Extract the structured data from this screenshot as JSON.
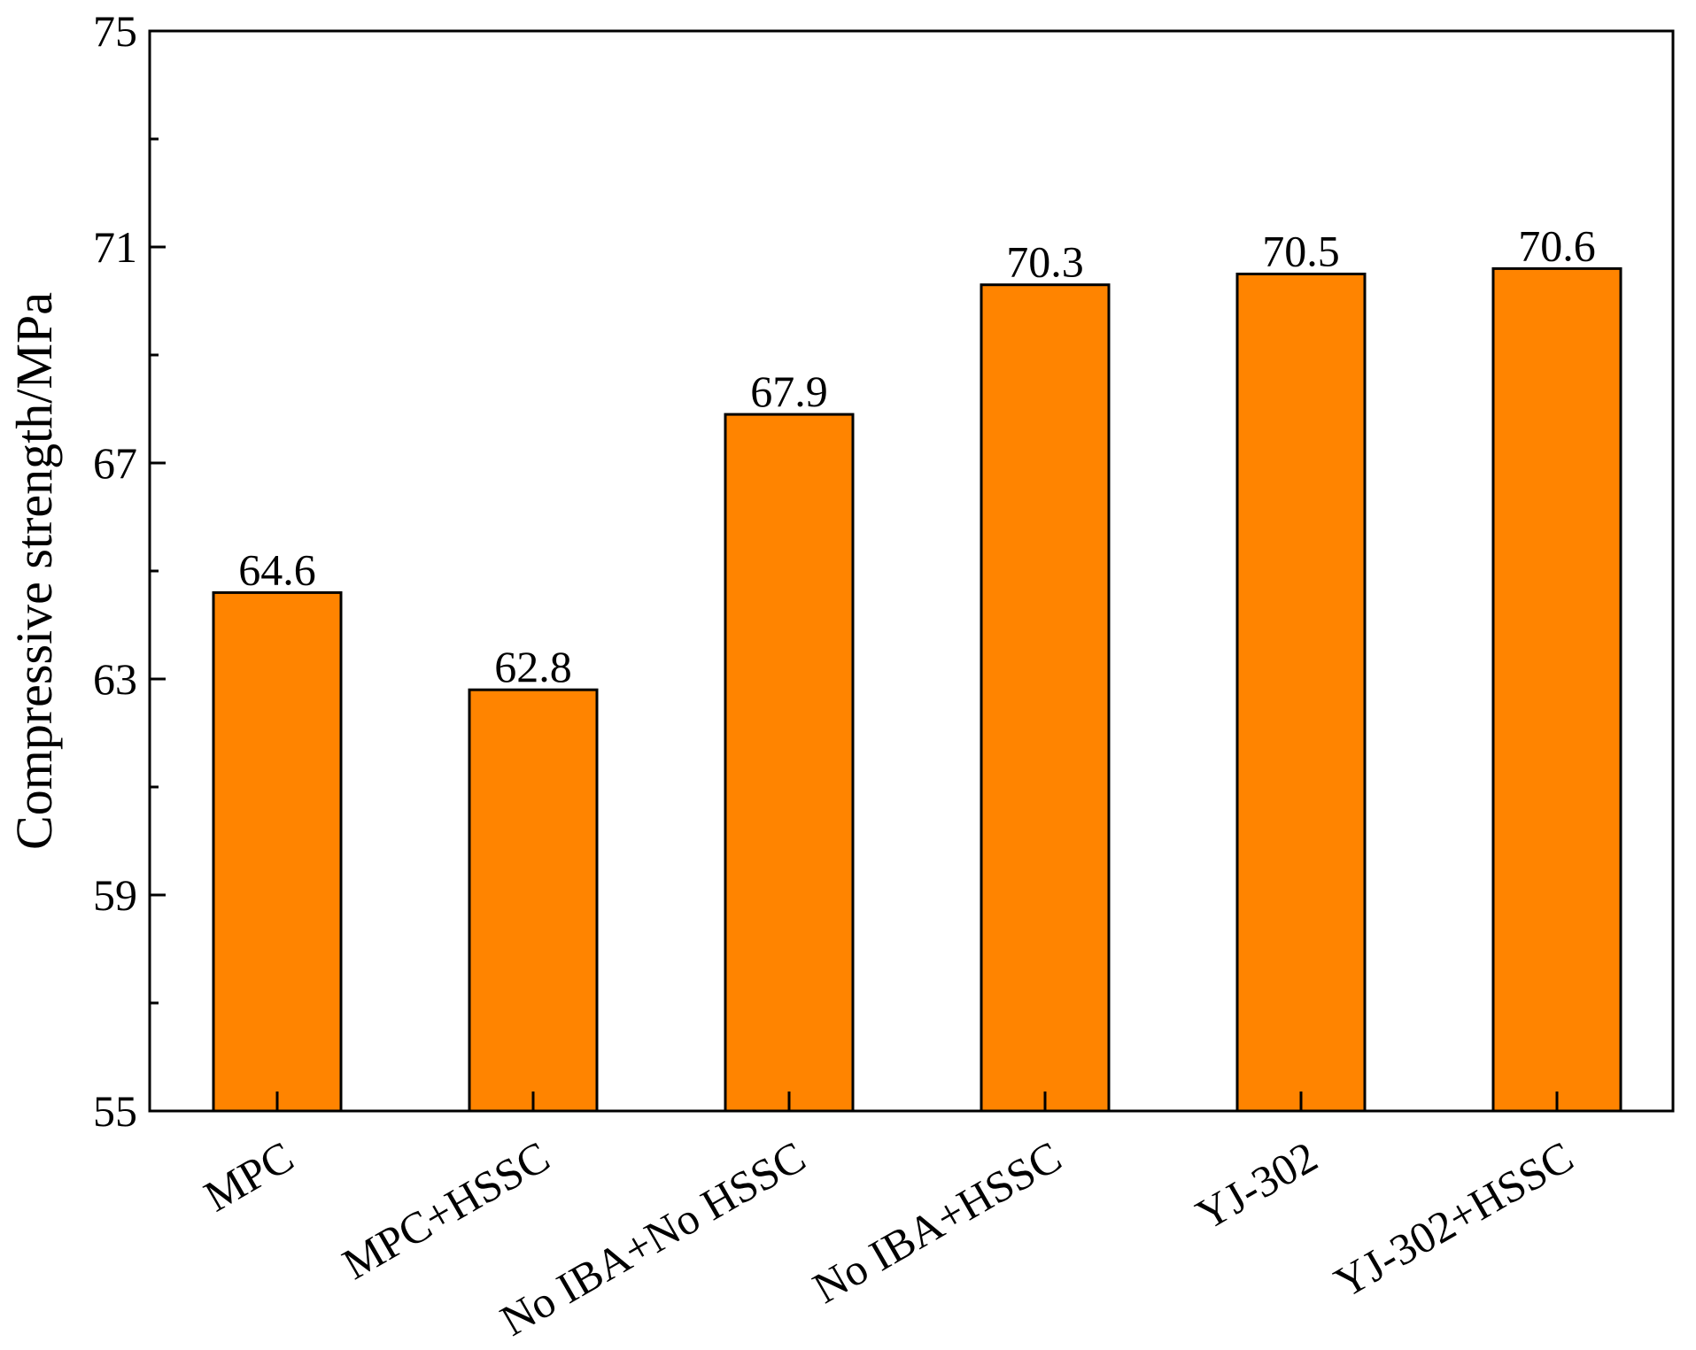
{
  "chart_data": {
    "type": "bar",
    "title": "",
    "xlabel": "",
    "ylabel": "Compressive strength/MPa",
    "categories": [
      "MPC",
      "MPC+HSSC",
      "No IBA+No HSSC",
      "No IBA+HSSC",
      "YJ-302",
      "YJ-302+HSSC"
    ],
    "values": [
      64.6,
      62.8,
      67.9,
      70.3,
      70.5,
      70.6
    ],
    "data_labels": [
      "64.6",
      "62.8",
      "67.9",
      "70.3",
      "70.5",
      "70.6"
    ],
    "ylim": [
      55,
      75
    ],
    "yticks": [
      55,
      59,
      63,
      67,
      71,
      75
    ],
    "ytick_labels": [
      "55",
      "59",
      "63",
      "67",
      "71",
      "75"
    ],
    "minor_tick_step": 2,
    "grid": false,
    "legend": "none",
    "bar_color": "#FF8400",
    "bar_edge_color": "#000000",
    "x_tick_label_rotation_deg": -30
  }
}
